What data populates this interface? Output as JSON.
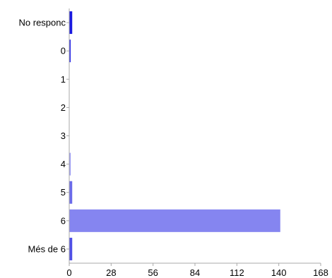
{
  "chart_data": {
    "type": "bar",
    "orientation": "horizontal",
    "categories": [
      "No responc",
      "0",
      "1",
      "2",
      "3",
      "4",
      "5",
      "6",
      "Més de 6"
    ],
    "values": [
      2,
      1,
      0,
      0,
      0,
      1,
      2,
      141,
      2
    ],
    "colors": [
      "#1a1ae0",
      "#3434e6",
      "#8585f0",
      "#8585f0",
      "#8585f0",
      "#9f9ff4",
      "#6b6bea",
      "#8585f0",
      "#5050e6"
    ],
    "xlim": [
      0,
      168
    ],
    "xticks": [
      "0",
      "28",
      "56",
      "84",
      "112",
      "140",
      "168"
    ],
    "grid": false,
    "legend": "none",
    "title": "",
    "xlabel": "",
    "ylabel": ""
  }
}
